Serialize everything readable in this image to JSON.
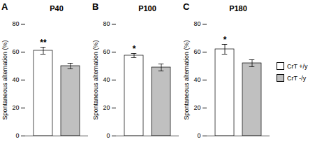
{
  "chart_data": [
    {
      "type": "bar",
      "panel_label": "A",
      "title": "P40",
      "series": [
        {
          "name": "CrT +/y",
          "color": "#ffffff",
          "values": [
            61
          ],
          "errors": [
            2.5
          ]
        },
        {
          "name": "CrT -/y",
          "color": "#c0c0c0",
          "values": [
            50
          ],
          "errors": [
            2.0
          ]
        }
      ],
      "annotations": [
        "**"
      ],
      "y_label": "Spontaneous alternation (%)",
      "ylim": [
        0,
        80
      ],
      "yticks": [
        0,
        20,
        40,
        60,
        80
      ]
    },
    {
      "type": "bar",
      "panel_label": "B",
      "title": "P100",
      "series": [
        {
          "name": "CrT +/y",
          "color": "#ffffff",
          "values": [
            57.5
          ],
          "errors": [
            1.5
          ]
        },
        {
          "name": "CrT -/y",
          "color": "#c0c0c0",
          "values": [
            49
          ],
          "errors": [
            2.5
          ]
        }
      ],
      "annotations": [
        "*"
      ],
      "y_label": "Spontaneous alternation (%)",
      "ylim": [
        0,
        80
      ],
      "yticks": [
        0,
        20,
        40,
        60,
        80
      ]
    },
    {
      "type": "bar",
      "panel_label": "C",
      "title": "P180",
      "series": [
        {
          "name": "CrT +/y",
          "color": "#ffffff",
          "values": [
            62
          ],
          "errors": [
            3.5
          ]
        },
        {
          "name": "CrT -/y",
          "color": "#c0c0c0",
          "values": [
            52
          ],
          "errors": [
            2.5
          ]
        }
      ],
      "annotations": [
        "*"
      ],
      "y_label": "Spontaneous alternation (%)",
      "ylim": [
        0,
        80
      ],
      "yticks": [
        0,
        20,
        40,
        60,
        80
      ],
      "legend": "right"
    }
  ]
}
